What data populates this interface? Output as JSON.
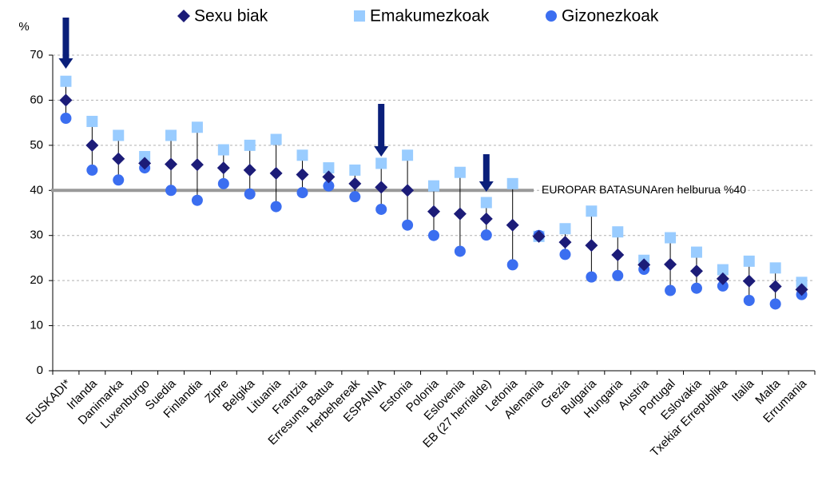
{
  "chart_data": {
    "type": "dot-range",
    "ylabel": "%",
    "categories": [
      "EUSKADI*",
      "Irlanda",
      "Danimarka",
      "Luxenburgo",
      "Suedia",
      "Finlandia",
      "Zipre",
      "Belgika",
      "Lituania",
      "Frantzia",
      "Erresuma Batua",
      "Herbehereak",
      "ESPAINIA",
      "Estonia",
      "Polonia",
      "Eslovenia",
      "EB (27 herrialde)",
      "Letonia",
      "Alemania",
      "Grezia",
      "Bulgaria",
      "Hungaria",
      "Austria",
      "Portugal",
      "Eslovakia",
      "Txekiar Errepublika",
      "Italia",
      "Malta",
      "Errumania"
    ],
    "series": [
      {
        "name": "Sexu biak",
        "color": "#1c1c78",
        "marker": "diamond",
        "values": [
          60,
          50,
          47,
          46,
          45.8,
          45.7,
          45,
          44.5,
          43.8,
          43.5,
          43,
          41.5,
          40.7,
          40,
          35.3,
          34.8,
          33.7,
          32.3,
          29.8,
          28.5,
          27.8,
          25.7,
          23.5,
          23.6,
          22.1,
          20.4,
          19.9,
          18.7,
          18
        ]
      },
      {
        "name": "Emakumezkoak",
        "color": "#99ccff",
        "marker": "square",
        "values": [
          64.2,
          55.3,
          52.2,
          47.5,
          52.2,
          54,
          49,
          50,
          51.3,
          47.8,
          45,
          44.5,
          46,
          47.8,
          41,
          44,
          37.3,
          41.5,
          29.8,
          31.5,
          35.4,
          30.8,
          24.5,
          29.5,
          26.3,
          22.4,
          24.3,
          22.8,
          19.6
        ]
      },
      {
        "name": "Gizonezkoak",
        "color": "#3b6ef0",
        "marker": "circle",
        "values": [
          56,
          44.5,
          42.3,
          45,
          40,
          37.8,
          41.5,
          39.2,
          36.4,
          39.5,
          41,
          38.6,
          35.8,
          32.3,
          30,
          26.5,
          30.1,
          23.5,
          30,
          25.8,
          20.8,
          21.1,
          22.5,
          17.8,
          18.3,
          18.8,
          15.6,
          14.8,
          16.9
        ]
      }
    ],
    "reference_line": {
      "value": 40,
      "label": "EUROPAR BATASUNAren helburua %40",
      "color": "#999999"
    },
    "ylim": [
      0,
      70
    ],
    "yticks": [
      0,
      10,
      20,
      30,
      40,
      50,
      60,
      70
    ],
    "grid": true
  }
}
